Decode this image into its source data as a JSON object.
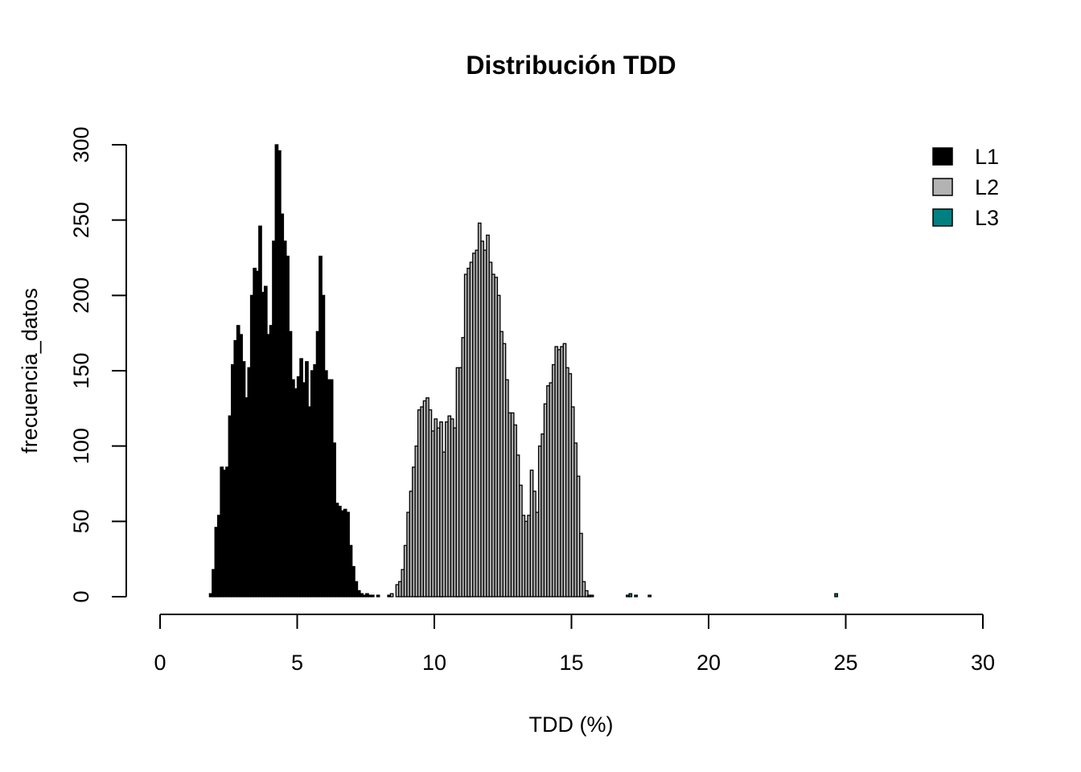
{
  "chart_data": {
    "type": "bar",
    "title": "Distribución TDD",
    "xlabel": "TDD (%)",
    "ylabel": "frecuencia_datos",
    "xlim": [
      0,
      30
    ],
    "ylim": [
      0,
      300
    ],
    "xticks": [
      "0",
      "5",
      "10",
      "15",
      "20",
      "25",
      "30"
    ],
    "yticks": [
      "0",
      "50",
      "100",
      "150",
      "200",
      "250",
      "300"
    ],
    "grid": false,
    "legend_position": "top-right",
    "bin_width": 0.1,
    "series": [
      {
        "name": "L1",
        "color": "#000000",
        "x_start": 1.8,
        "values": [
          2,
          18,
          46,
          54,
          86,
          84,
          86,
          120,
          154,
          170,
          180,
          174,
          156,
          132,
          152,
          200,
          218,
          216,
          246,
          202,
          206,
          174,
          180,
          236,
          300,
          296,
          254,
          236,
          226,
          176,
          144,
          138,
          146,
          158,
          142,
          156,
          126,
          150,
          154,
          176,
          226,
          200,
          150,
          144,
          144,
          102,
          62,
          60,
          57,
          58,
          56,
          34,
          20,
          10,
          4,
          2,
          1,
          2,
          1,
          1,
          0,
          1,
          0,
          0,
          0,
          1,
          0,
          0,
          0,
          0,
          0,
          0,
          0,
          0,
          0,
          1,
          0,
          0,
          0,
          0,
          0,
          0,
          0,
          0,
          1,
          0,
          0,
          0,
          0,
          0,
          1,
          0,
          0,
          0,
          1
        ]
      },
      {
        "name": "L2",
        "color": "#b3b3b3",
        "x_start": 8.4,
        "values": [
          2,
          0,
          8,
          10,
          18,
          34,
          56,
          70,
          86,
          100,
          124,
          126,
          130,
          132,
          124,
          110,
          118,
          112,
          116,
          96,
          116,
          120,
          118,
          112,
          152,
          152,
          172,
          214,
          218,
          222,
          228,
          230,
          248,
          236,
          230,
          240,
          222,
          214,
          212,
          200,
          176,
          168,
          144,
          122,
          122,
          114,
          94,
          74,
          54,
          50,
          54,
          84,
          70,
          56,
          100,
          108,
          128,
          140,
          142,
          154,
          166,
          164,
          166,
          168,
          152,
          148,
          126,
          102,
          80,
          42,
          10,
          4,
          1
        ]
      },
      {
        "name": "L3",
        "color": "#008080",
        "x_start": 15.6,
        "values": [
          1,
          1,
          0,
          0,
          0,
          0,
          0,
          0,
          0,
          0,
          0,
          0,
          0,
          0,
          1,
          2,
          0,
          1,
          0,
          0,
          0,
          0,
          1,
          0,
          0,
          0,
          0,
          0,
          0,
          0,
          0,
          0,
          0,
          0,
          0,
          0,
          0,
          0,
          0,
          0,
          0,
          0,
          0,
          0,
          0,
          0,
          0,
          0,
          0,
          0,
          0,
          0,
          0,
          0,
          0,
          0,
          0,
          0,
          0,
          0,
          0,
          0,
          0,
          0,
          0,
          0,
          0,
          0,
          0,
          0,
          0,
          0,
          0,
          0,
          0,
          0,
          0,
          0,
          0,
          0,
          0,
          0,
          0,
          0,
          0,
          0,
          0,
          0,
          0,
          0,
          2
        ]
      }
    ]
  }
}
